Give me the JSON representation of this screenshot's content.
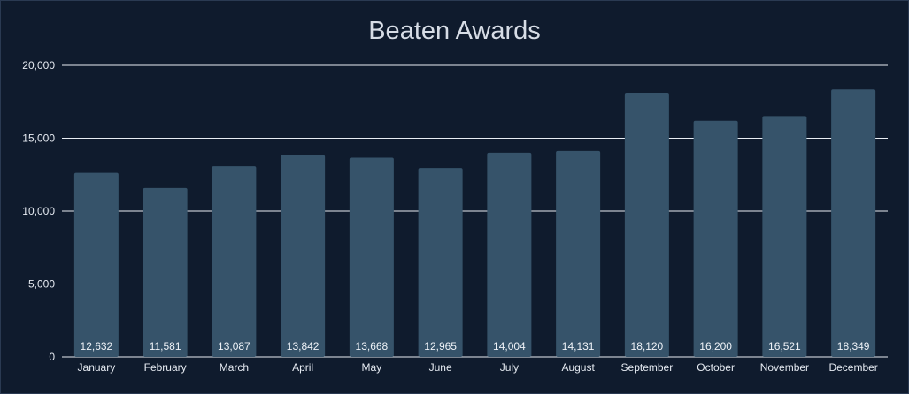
{
  "chart_data": {
    "type": "bar",
    "title": "Beaten Awards",
    "xlabel": "",
    "ylabel": "",
    "categories": [
      "January",
      "February",
      "March",
      "April",
      "May",
      "June",
      "July",
      "August",
      "September",
      "October",
      "November",
      "December"
    ],
    "series": [
      {
        "values": [
          12632,
          11581,
          13087,
          13842,
          13668,
          12965,
          14004,
          14131,
          18120,
          16200,
          16521,
          18349
        ]
      }
    ],
    "data_labels": [
      "12,632",
      "11,581",
      "13,087",
      "13,842",
      "13,668",
      "12,965",
      "14,004",
      "14,131",
      "18,120",
      "16,200",
      "16,521",
      "18,349"
    ],
    "ylim": [
      0,
      20000
    ],
    "yticks": [
      0,
      5000,
      10000,
      15000,
      20000
    ],
    "ytick_labels": [
      "0",
      "5,000",
      "10,000",
      "15,000",
      "20,000"
    ],
    "grid": true,
    "legend": "none",
    "colors": {
      "background": "#0f1b2d",
      "bar": "#36536a",
      "grid": "#e8edf3",
      "text": "#e6ebf2"
    }
  }
}
